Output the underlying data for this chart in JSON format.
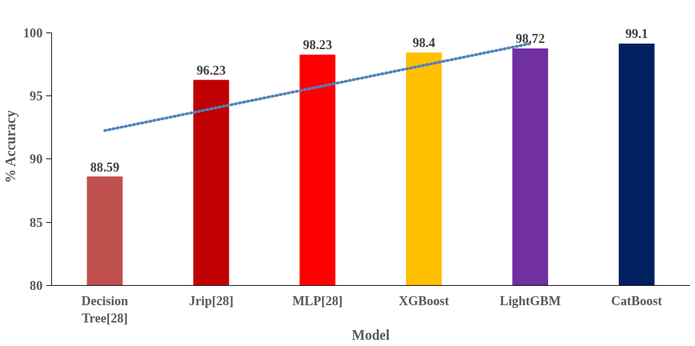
{
  "chart_data": {
    "type": "bar",
    "xlabel": "Model",
    "ylabel": "% Accuracy",
    "categories": [
      "Decision\nTree[28]",
      "Jrip[28]",
      "MLP[28]",
      "XGBoost",
      "LightGBM",
      "CatBoost"
    ],
    "series": [
      {
        "values": [
          88.59,
          96.23,
          98.23,
          98.4,
          98.72,
          99.1
        ],
        "value_labels": [
          "88.59",
          "96.23",
          "98.23",
          "98.4",
          "98.72",
          "99.1"
        ],
        "colors": [
          "#c0504d",
          "#c00000",
          "#ff0000",
          "#ffc000",
          "#7030a0",
          "#002060"
        ]
      },
      {
        "type": "line",
        "values": [
          92.25,
          93.97,
          95.69,
          97.41,
          99.13,
          null
        ],
        "color": "#4f81bd",
        "line_style": "dotted"
      }
    ],
    "ylim": [
      80,
      100
    ],
    "yticks": [
      80,
      85,
      90,
      95,
      100
    ],
    "grid": false
  }
}
